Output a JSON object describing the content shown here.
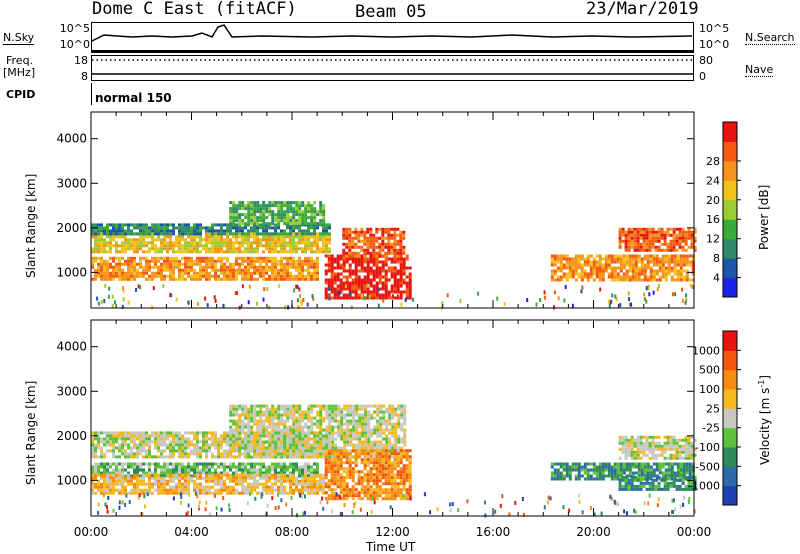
{
  "header": {
    "station": "Dome C East (fitACF)",
    "beam": "Beam 05",
    "date": "23/Mar/2019"
  },
  "top_panels": {
    "nsky_label": "N.Sky",
    "nsky_ticks": [
      "10^5",
      "10^0"
    ],
    "nsearch_label": "N.Search",
    "nsearch_ticks": [
      "10^5",
      "10^0"
    ],
    "freq_label_1": "Freq.",
    "freq_label_2": "[MHz]",
    "freq_ticks": [
      "18",
      "8"
    ],
    "nave_label": "Nave",
    "nave_ticks": [
      "80",
      "0"
    ],
    "cpid_label": "CPID",
    "cpid_value": "normal 150"
  },
  "colors": {
    "power_scale": [
      "#1a23e6",
      "#1f55a8",
      "#2e8a6a",
      "#3aaa3a",
      "#9ccc33",
      "#f0c21a",
      "#f5931d",
      "#f55a10",
      "#e8140f"
    ],
    "velocity_scale": [
      "#1f3fb4",
      "#2e6aa8",
      "#2f8a5a",
      "#5cc23a",
      "#c8c8c0",
      "#f5b820",
      "#f58c10",
      "#f2560f",
      "#e8140f"
    ]
  },
  "chart_data": [
    {
      "type": "heatmap",
      "panel": "power",
      "ylabel": "Slant Range [km]",
      "xlabel": "",
      "ylim": [
        200,
        4600
      ],
      "yticks": [
        "1000",
        "2000",
        "3000",
        "4000"
      ],
      "xlim": [
        0,
        24
      ],
      "xticks": [
        "00:00",
        "04:00",
        "08:00",
        "12:00",
        "16:00",
        "20:00",
        "00:00"
      ],
      "colorbar_label": "Power [dB]",
      "colorbar_ticks": [
        "4",
        "8",
        "12",
        "16",
        "20",
        "24",
        "28"
      ],
      "regions": [
        {
          "t0": 0.0,
          "t1": 9.5,
          "r0": 1450,
          "r1": 1900,
          "level": 5
        },
        {
          "t0": 0.0,
          "t1": 9.5,
          "r0": 1850,
          "r1": 2100,
          "level": 2
        },
        {
          "t0": 0.0,
          "t1": 9.0,
          "r0": 850,
          "r1": 1350,
          "level": 6
        },
        {
          "t0": 5.5,
          "t1": 9.3,
          "r0": 2100,
          "r1": 2600,
          "level": 3
        },
        {
          "t0": 9.3,
          "t1": 12.7,
          "r0": 450,
          "r1": 1400,
          "level": 8
        },
        {
          "t0": 10.0,
          "t1": 12.5,
          "r0": 1350,
          "r1": 2000,
          "level": 7
        },
        {
          "t0": 18.3,
          "t1": 24.0,
          "r0": 800,
          "r1": 1400,
          "level": 6
        },
        {
          "t0": 21.0,
          "t1": 24.0,
          "r0": 1500,
          "r1": 2000,
          "level": 7
        }
      ]
    },
    {
      "type": "heatmap",
      "panel": "velocity",
      "ylabel": "Slant Range [km]",
      "xlabel": "Time UT",
      "ylim": [
        200,
        4600
      ],
      "yticks": [
        "1000",
        "2000",
        "3000",
        "4000"
      ],
      "xlim": [
        0,
        24
      ],
      "xticks": [
        "00:00",
        "04:00",
        "08:00",
        "12:00",
        "16:00",
        "20:00",
        "00:00"
      ],
      "colorbar_label": "Velocity [m s",
      "colorbar_label_sup": "-1",
      "colorbar_label_end": "]",
      "colorbar_ticks": [
        "1000",
        "500",
        "100",
        "25",
        "-25",
        "-100",
        "-500",
        "-1000"
      ],
      "regions": [
        {
          "t0": 0.0,
          "t1": 9.5,
          "r0": 1500,
          "r1": 2100,
          "level": 4
        },
        {
          "t0": 5.5,
          "t1": 12.5,
          "r0": 1500,
          "r1": 2700,
          "level": 4
        },
        {
          "t0": 0.0,
          "t1": 9.0,
          "r0": 1100,
          "r1": 1400,
          "level": 3
        },
        {
          "t0": 0.0,
          "t1": 9.3,
          "r0": 700,
          "r1": 1150,
          "level": 5
        },
        {
          "t0": 9.3,
          "t1": 12.7,
          "r0": 600,
          "r1": 1700,
          "level": 6
        },
        {
          "t0": 18.3,
          "t1": 24.0,
          "r0": 1000,
          "r1": 1400,
          "level": 2
        },
        {
          "t0": 21.0,
          "t1": 24.0,
          "r0": 800,
          "r1": 1100,
          "level": 2
        },
        {
          "t0": 21.0,
          "t1": 24.0,
          "r0": 1500,
          "r1": 2000,
          "level": 4
        }
      ]
    }
  ]
}
